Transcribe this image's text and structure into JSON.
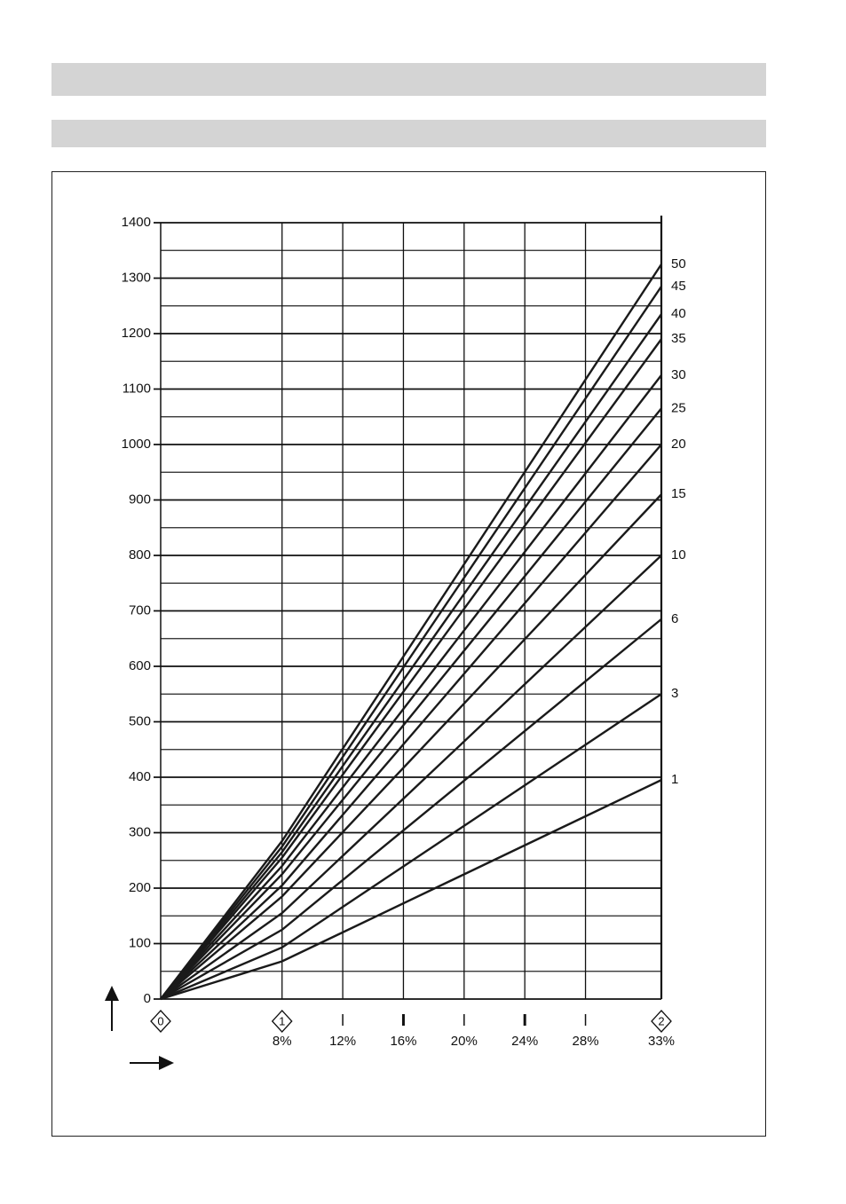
{
  "chart_data": {
    "type": "line",
    "xlim": [
      0,
      33
    ],
    "ylim": [
      0,
      1400
    ],
    "yticks": [
      0,
      100,
      200,
      300,
      400,
      500,
      600,
      700,
      800,
      900,
      1000,
      1100,
      1200,
      1300,
      1400
    ],
    "minor_yticks": [
      50,
      150,
      250,
      350,
      450,
      550,
      650,
      750,
      850,
      950,
      1050,
      1150,
      1250,
      1350
    ],
    "xticks": [
      {
        "value": 8,
        "label": "8%"
      },
      {
        "value": 12,
        "label": "12%"
      },
      {
        "value": 16,
        "label": "16%"
      },
      {
        "value": 20,
        "label": "20%"
      },
      {
        "value": 24,
        "label": "24%"
      },
      {
        "value": 28,
        "label": "28%"
      },
      {
        "value": 33,
        "label": "33%"
      }
    ],
    "stage_markers": [
      {
        "x": 0,
        "label": "0"
      },
      {
        "x": 8,
        "label": "1"
      },
      {
        "x": 33,
        "label": "2"
      }
    ],
    "grid": true,
    "color": "#1a1a1a",
    "x": [
      0,
      8,
      33
    ],
    "series": [
      {
        "name": "50",
        "values": [
          0,
          285,
          1325
        ]
      },
      {
        "name": "45",
        "values": [
          0,
          275,
          1285
        ]
      },
      {
        "name": "40",
        "values": [
          0,
          265,
          1235
        ]
      },
      {
        "name": "35",
        "values": [
          0,
          255,
          1190
        ]
      },
      {
        "name": "30",
        "values": [
          0,
          240,
          1125
        ]
      },
      {
        "name": "25",
        "values": [
          0,
          225,
          1065
        ]
      },
      {
        "name": "20",
        "values": [
          0,
          205,
          1000
        ]
      },
      {
        "name": "15",
        "values": [
          0,
          185,
          910
        ]
      },
      {
        "name": "10",
        "values": [
          0,
          155,
          800
        ]
      },
      {
        "name": "6",
        "values": [
          0,
          125,
          685
        ]
      },
      {
        "name": "3",
        "values": [
          0,
          93,
          550
        ]
      },
      {
        "name": "1",
        "values": [
          0,
          68,
          395
        ]
      }
    ]
  }
}
